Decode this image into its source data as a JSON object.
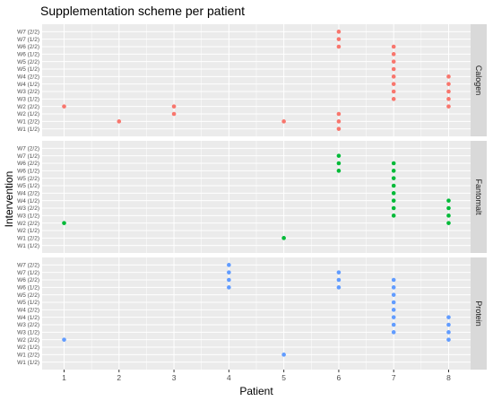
{
  "colors": {
    "panel_bg": "#ebebeb",
    "grid": "#ffffff",
    "strip_bg": "#d9d9d9",
    "Calogen": "#f8766d",
    "Fantomalt": "#00ba38",
    "Protein": "#619cff"
  },
  "chart_data": {
    "type": "scatter",
    "title": "Supplementation scheme per patient",
    "xlabel": "Patient",
    "ylabel": "Intervention",
    "x_ticks": [
      1,
      2,
      3,
      4,
      5,
      6,
      7,
      8
    ],
    "xlim": [
      0.6,
      8.4
    ],
    "y_categories": [
      "W1 (1/2)",
      "W1 (2/2)",
      "W2 (1/2)",
      "W2 (2/2)",
      "W3 (1/2)",
      "W3 (2/2)",
      "W4 (1/2)",
      "W4 (2/2)",
      "W5 (1/2)",
      "W5 (2/2)",
      "W6 (1/2)",
      "W6 (2/2)",
      "W7 (1/2)",
      "W7 (2/2)"
    ],
    "grid": true,
    "facets": [
      {
        "name": "Calogen",
        "points": [
          {
            "x": 1,
            "y": "W2 (2/2)"
          },
          {
            "x": 2,
            "y": "W1 (2/2)"
          },
          {
            "x": 3,
            "y": "W2 (1/2)"
          },
          {
            "x": 3,
            "y": "W2 (2/2)"
          },
          {
            "x": 5,
            "y": "W1 (2/2)"
          },
          {
            "x": 6,
            "y": "W1 (1/2)"
          },
          {
            "x": 6,
            "y": "W1 (2/2)"
          },
          {
            "x": 6,
            "y": "W2 (1/2)"
          },
          {
            "x": 6,
            "y": "W6 (2/2)"
          },
          {
            "x": 6,
            "y": "W7 (1/2)"
          },
          {
            "x": 6,
            "y": "W7 (2/2)"
          },
          {
            "x": 7,
            "y": "W3 (1/2)"
          },
          {
            "x": 7,
            "y": "W3 (2/2)"
          },
          {
            "x": 7,
            "y": "W4 (1/2)"
          },
          {
            "x": 7,
            "y": "W4 (2/2)"
          },
          {
            "x": 7,
            "y": "W5 (1/2)"
          },
          {
            "x": 7,
            "y": "W5 (2/2)"
          },
          {
            "x": 7,
            "y": "W6 (1/2)"
          },
          {
            "x": 7,
            "y": "W6 (2/2)"
          },
          {
            "x": 8,
            "y": "W2 (2/2)"
          },
          {
            "x": 8,
            "y": "W3 (1/2)"
          },
          {
            "x": 8,
            "y": "W3 (2/2)"
          },
          {
            "x": 8,
            "y": "W4 (1/2)"
          },
          {
            "x": 8,
            "y": "W4 (2/2)"
          }
        ]
      },
      {
        "name": "Fantomalt",
        "points": [
          {
            "x": 1,
            "y": "W2 (2/2)"
          },
          {
            "x": 5,
            "y": "W1 (2/2)"
          },
          {
            "x": 6,
            "y": "W6 (1/2)"
          },
          {
            "x": 6,
            "y": "W6 (2/2)"
          },
          {
            "x": 6,
            "y": "W7 (1/2)"
          },
          {
            "x": 7,
            "y": "W3 (1/2)"
          },
          {
            "x": 7,
            "y": "W3 (2/2)"
          },
          {
            "x": 7,
            "y": "W4 (1/2)"
          },
          {
            "x": 7,
            "y": "W4 (2/2)"
          },
          {
            "x": 7,
            "y": "W5 (1/2)"
          },
          {
            "x": 7,
            "y": "W5 (2/2)"
          },
          {
            "x": 7,
            "y": "W6 (1/2)"
          },
          {
            "x": 7,
            "y": "W6 (2/2)"
          },
          {
            "x": 8,
            "y": "W2 (2/2)"
          },
          {
            "x": 8,
            "y": "W3 (1/2)"
          },
          {
            "x": 8,
            "y": "W3 (2/2)"
          },
          {
            "x": 8,
            "y": "W4 (1/2)"
          }
        ]
      },
      {
        "name": "Protein",
        "points": [
          {
            "x": 1,
            "y": "W2 (2/2)"
          },
          {
            "x": 4,
            "y": "W6 (1/2)"
          },
          {
            "x": 4,
            "y": "W6 (2/2)"
          },
          {
            "x": 4,
            "y": "W7 (1/2)"
          },
          {
            "x": 4,
            "y": "W7 (2/2)"
          },
          {
            "x": 5,
            "y": "W1 (2/2)"
          },
          {
            "x": 6,
            "y": "W6 (1/2)"
          },
          {
            "x": 6,
            "y": "W6 (2/2)"
          },
          {
            "x": 6,
            "y": "W7 (1/2)"
          },
          {
            "x": 7,
            "y": "W3 (1/2)"
          },
          {
            "x": 7,
            "y": "W3 (2/2)"
          },
          {
            "x": 7,
            "y": "W4 (1/2)"
          },
          {
            "x": 7,
            "y": "W4 (2/2)"
          },
          {
            "x": 7,
            "y": "W5 (1/2)"
          },
          {
            "x": 7,
            "y": "W5 (2/2)"
          },
          {
            "x": 7,
            "y": "W6 (1/2)"
          },
          {
            "x": 7,
            "y": "W6 (2/2)"
          },
          {
            "x": 8,
            "y": "W2 (2/2)"
          },
          {
            "x": 8,
            "y": "W3 (1/2)"
          },
          {
            "x": 8,
            "y": "W3 (2/2)"
          },
          {
            "x": 8,
            "y": "W4 (1/2)"
          }
        ]
      }
    ]
  }
}
